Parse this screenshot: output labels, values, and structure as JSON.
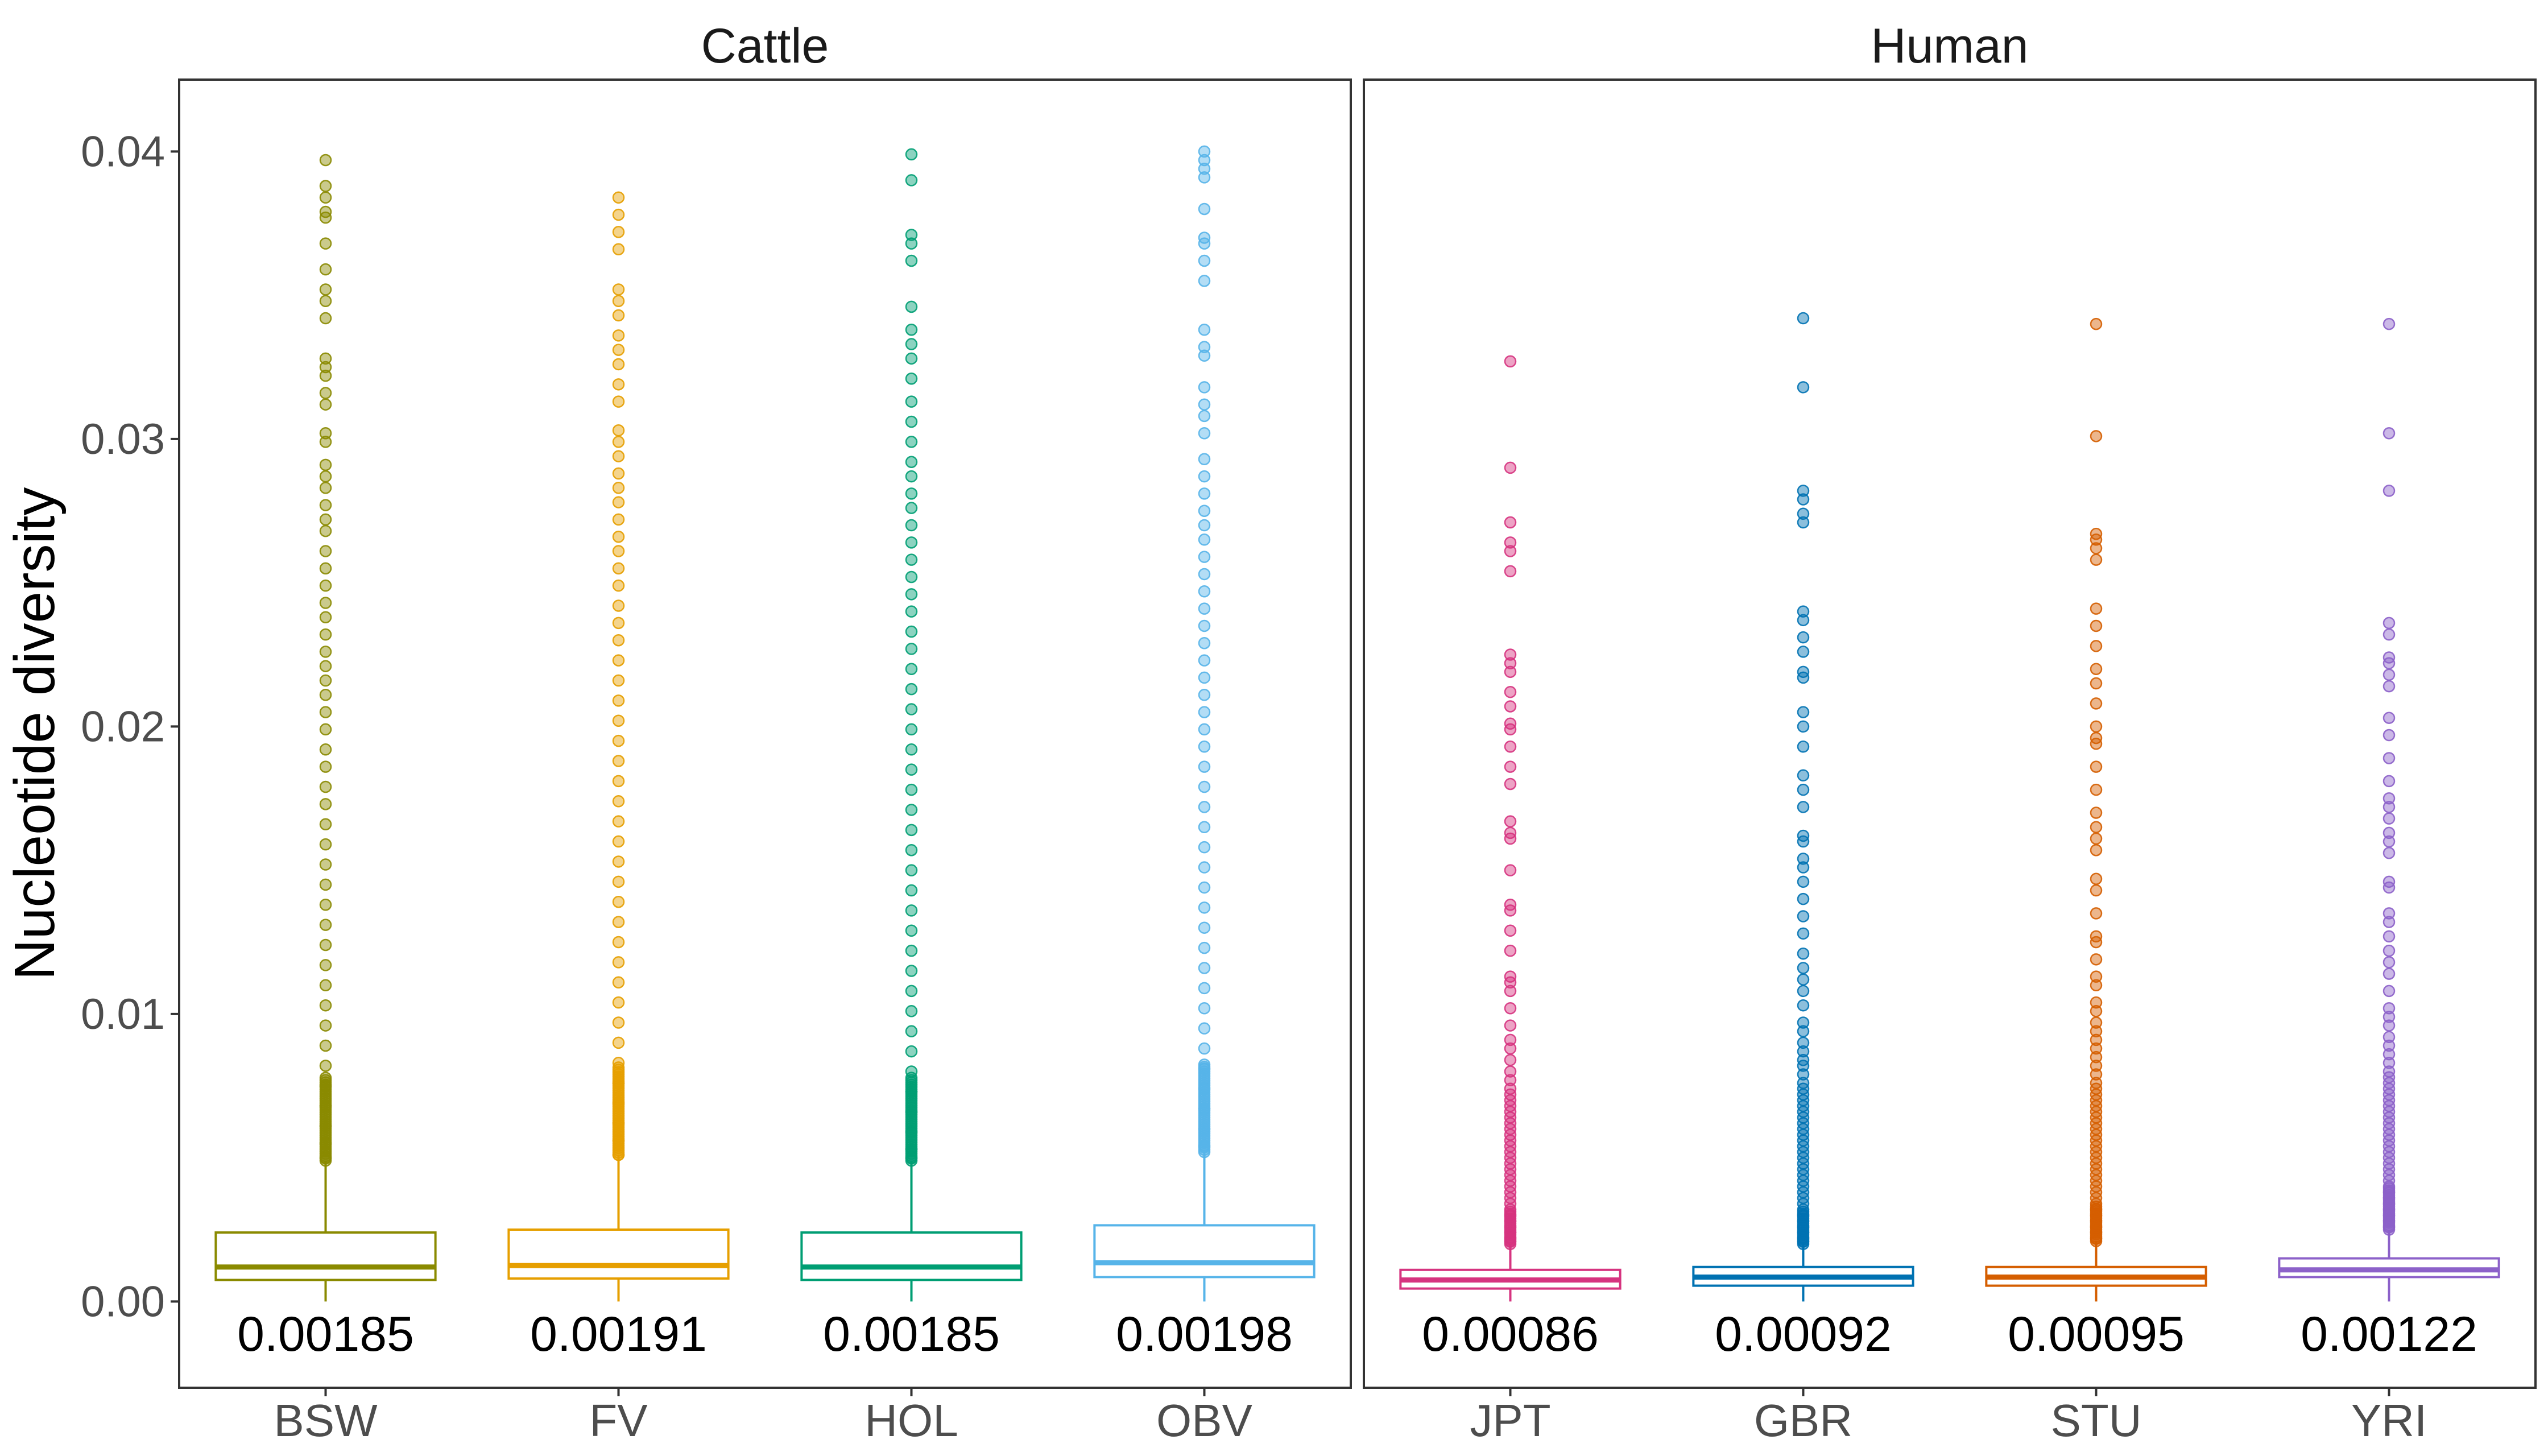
{
  "chart_data": {
    "type": "boxplot",
    "ylabel": "Nucleotide diversity",
    "ylim": [
      -0.003,
      0.0425
    ],
    "yticks": [
      0.0,
      0.01,
      0.02,
      0.03,
      0.04
    ],
    "ytick_labels": [
      "0.00",
      "0.01",
      "0.02",
      "0.03",
      "0.04"
    ],
    "grid": false,
    "legend": "none",
    "panels": [
      {
        "title": "Cattle",
        "groups": [
          {
            "name": "BSW",
            "color": "#8a8a00",
            "mean_label": "0.00185",
            "q1": 0.00075,
            "median": 0.0012,
            "q3": 0.0024,
            "whisker_low": 0.0,
            "whisker_high": 0.0049,
            "outliers": [
              0.0397,
              0.0388,
              0.0384,
              0.0379,
              0.0377,
              0.0368,
              0.0359,
              0.0352,
              0.0348,
              0.0342,
              0.0328,
              0.0325,
              0.0322,
              0.0316,
              0.0312,
              0.0302,
              0.0299,
              0.0291,
              0.0287,
              0.0283,
              0.0277,
              0.0272,
              0.0268,
              0.0261,
              0.0255,
              0.0249,
              0.0243,
              0.0238,
              0.0232,
              0.0226,
              0.0221,
              0.0216,
              0.0211,
              0.0205,
              0.0199,
              0.0192,
              0.0186,
              0.0179,
              0.0173,
              0.0166,
              0.0159,
              0.0152,
              0.0145,
              0.0138,
              0.0131,
              0.0124,
              0.0117,
              0.011,
              0.0103,
              0.0096,
              0.0089,
              0.0082,
              0.0075,
              0.0068,
              0.0061,
              0.0055,
              0.005
            ]
          },
          {
            "name": "FV",
            "color": "#e69f00",
            "mean_label": "0.00191",
            "q1": 0.0008,
            "median": 0.00125,
            "q3": 0.0025,
            "whisker_low": 0.0,
            "whisker_high": 0.0051,
            "outliers": [
              0.0384,
              0.0378,
              0.0372,
              0.0366,
              0.0352,
              0.0348,
              0.0343,
              0.0336,
              0.0331,
              0.0326,
              0.0319,
              0.0313,
              0.0303,
              0.0299,
              0.0294,
              0.0288,
              0.0283,
              0.0278,
              0.0272,
              0.0266,
              0.0261,
              0.0255,
              0.0249,
              0.0242,
              0.0236,
              0.023,
              0.0223,
              0.0216,
              0.0209,
              0.0202,
              0.0195,
              0.0188,
              0.0181,
              0.0174,
              0.0167,
              0.016,
              0.0153,
              0.0146,
              0.0139,
              0.0132,
              0.0125,
              0.0118,
              0.0111,
              0.0104,
              0.0097,
              0.009,
              0.0083,
              0.0076,
              0.0069,
              0.0062,
              0.0056,
              0.0051
            ]
          },
          {
            "name": "HOL",
            "color": "#009e73",
            "mean_label": "0.00185",
            "q1": 0.00075,
            "median": 0.0012,
            "q3": 0.0024,
            "whisker_low": 0.0,
            "whisker_high": 0.0049,
            "outliers": [
              0.0399,
              0.039,
              0.0371,
              0.0368,
              0.0362,
              0.0346,
              0.0338,
              0.0333,
              0.0328,
              0.0321,
              0.0313,
              0.0306,
              0.0299,
              0.0292,
              0.0287,
              0.0281,
              0.0276,
              0.027,
              0.0264,
              0.0258,
              0.0252,
              0.0246,
              0.024,
              0.0233,
              0.0227,
              0.022,
              0.0213,
              0.0206,
              0.0199,
              0.0192,
              0.0185,
              0.0178,
              0.0171,
              0.0164,
              0.0157,
              0.015,
              0.0143,
              0.0136,
              0.0129,
              0.0122,
              0.0115,
              0.0108,
              0.0101,
              0.0094,
              0.0087,
              0.008,
              0.0073,
              0.0066,
              0.0059,
              0.0053,
              0.005
            ]
          },
          {
            "name": "OBV",
            "color": "#56b4e9",
            "mean_label": "0.00198",
            "q1": 0.00085,
            "median": 0.00135,
            "q3": 0.00265,
            "whisker_low": 0.0,
            "whisker_high": 0.0052,
            "outliers": [
              0.04,
              0.0397,
              0.0394,
              0.0391,
              0.038,
              0.037,
              0.0368,
              0.0362,
              0.0355,
              0.0338,
              0.0332,
              0.0329,
              0.0318,
              0.0312,
              0.0308,
              0.0302,
              0.0293,
              0.0287,
              0.0281,
              0.0275,
              0.027,
              0.0265,
              0.0259,
              0.0253,
              0.0247,
              0.0241,
              0.0235,
              0.0229,
              0.0223,
              0.0217,
              0.0211,
              0.0205,
              0.0199,
              0.0193,
              0.0186,
              0.0179,
              0.0172,
              0.0165,
              0.0158,
              0.0151,
              0.0144,
              0.0137,
              0.013,
              0.0123,
              0.0116,
              0.0109,
              0.0102,
              0.0095,
              0.0088,
              0.0081,
              0.0074,
              0.0067,
              0.006,
              0.0054
            ]
          }
        ]
      },
      {
        "title": "Human",
        "groups": [
          {
            "name": "JPT",
            "color": "#d6337f",
            "mean_label": "0.00086",
            "q1": 0.00045,
            "median": 0.00075,
            "q3": 0.0011,
            "whisker_low": 0.0,
            "whisker_high": 0.002,
            "outliers": [
              0.0327,
              0.029,
              0.0271,
              0.0264,
              0.0261,
              0.0254,
              0.0225,
              0.0222,
              0.0219,
              0.0212,
              0.0207,
              0.0201,
              0.0199,
              0.0193,
              0.0186,
              0.018,
              0.0167,
              0.0163,
              0.0161,
              0.015,
              0.0138,
              0.0136,
              0.0129,
              0.0122,
              0.0113,
              0.0111,
              0.0108,
              0.0102,
              0.0096,
              0.0091,
              0.0088,
              0.0084,
              0.008,
              0.0077,
              0.0074,
              0.0072,
              0.007,
              0.0068,
              0.0066,
              0.0064,
              0.0062,
              0.006,
              0.0058,
              0.0056,
              0.0054,
              0.0052,
              0.005,
              0.0048,
              0.0046,
              0.0044,
              0.0042,
              0.004,
              0.0038,
              0.0036,
              0.0034,
              0.0032,
              0.003,
              0.0028,
              0.0026,
              0.0024,
              0.0022,
              0.0021
            ]
          },
          {
            "name": "GBR",
            "color": "#0072b2",
            "mean_label": "0.00092",
            "q1": 0.00055,
            "median": 0.00085,
            "q3": 0.0012,
            "whisker_low": 0.0,
            "whisker_high": 0.002,
            "outliers": [
              0.0342,
              0.0318,
              0.0282,
              0.0279,
              0.0274,
              0.0271,
              0.024,
              0.0237,
              0.0231,
              0.0226,
              0.0219,
              0.0217,
              0.0205,
              0.02,
              0.0193,
              0.0183,
              0.0178,
              0.0172,
              0.0162,
              0.016,
              0.0154,
              0.0151,
              0.0146,
              0.014,
              0.0134,
              0.0128,
              0.0121,
              0.0116,
              0.0112,
              0.0108,
              0.0103,
              0.0097,
              0.0094,
              0.009,
              0.0087,
              0.0084,
              0.0082,
              0.0079,
              0.0076,
              0.0074,
              0.0072,
              0.007,
              0.0068,
              0.0066,
              0.0064,
              0.0062,
              0.006,
              0.0058,
              0.0056,
              0.0054,
              0.0052,
              0.005,
              0.0048,
              0.0046,
              0.0044,
              0.0042,
              0.004,
              0.0038,
              0.0036,
              0.0034,
              0.0032,
              0.003,
              0.0028,
              0.0026,
              0.0024,
              0.0022,
              0.0021
            ]
          },
          {
            "name": "STU",
            "color": "#d55e00",
            "mean_label": "0.00095",
            "q1": 0.00055,
            "median": 0.00085,
            "q3": 0.0012,
            "whisker_low": 0.0,
            "whisker_high": 0.0021,
            "outliers": [
              0.034,
              0.0301,
              0.0267,
              0.0265,
              0.0262,
              0.0258,
              0.0241,
              0.0235,
              0.0228,
              0.022,
              0.0215,
              0.0208,
              0.02,
              0.0196,
              0.0194,
              0.0186,
              0.0178,
              0.017,
              0.0165,
              0.0161,
              0.0157,
              0.0147,
              0.0143,
              0.0135,
              0.0127,
              0.0125,
              0.0119,
              0.0113,
              0.011,
              0.0104,
              0.0101,
              0.0097,
              0.0094,
              0.0091,
              0.0088,
              0.0085,
              0.0082,
              0.0079,
              0.0076,
              0.0074,
              0.0072,
              0.007,
              0.0068,
              0.0066,
              0.0064,
              0.0062,
              0.006,
              0.0058,
              0.0056,
              0.0054,
              0.0052,
              0.005,
              0.0048,
              0.0046,
              0.0044,
              0.0042,
              0.004,
              0.0038,
              0.0036,
              0.0034,
              0.0032,
              0.003,
              0.0028,
              0.0026,
              0.0024,
              0.0022
            ]
          },
          {
            "name": "YRI",
            "color": "#8c61c9",
            "mean_label": "0.00122",
            "q1": 0.00085,
            "median": 0.0011,
            "q3": 0.0015,
            "whisker_low": 0.0,
            "whisker_high": 0.0025,
            "outliers": [
              0.034,
              0.0302,
              0.0282,
              0.0236,
              0.0232,
              0.0224,
              0.0222,
              0.0218,
              0.0214,
              0.0203,
              0.0197,
              0.0189,
              0.0181,
              0.0175,
              0.0172,
              0.0168,
              0.0163,
              0.016,
              0.0156,
              0.0146,
              0.0144,
              0.0135,
              0.0132,
              0.0127,
              0.0122,
              0.0118,
              0.0114,
              0.0108,
              0.0102,
              0.0099,
              0.0096,
              0.0092,
              0.0089,
              0.0086,
              0.0083,
              0.008,
              0.0078,
              0.0076,
              0.0074,
              0.0072,
              0.007,
              0.0068,
              0.0066,
              0.0064,
              0.0062,
              0.006,
              0.0058,
              0.0056,
              0.0054,
              0.0052,
              0.005,
              0.0048,
              0.0046,
              0.0044,
              0.0042,
              0.004,
              0.0038,
              0.0036,
              0.0034,
              0.0032,
              0.003,
              0.0028,
              0.0026
            ]
          }
        ]
      }
    ]
  }
}
